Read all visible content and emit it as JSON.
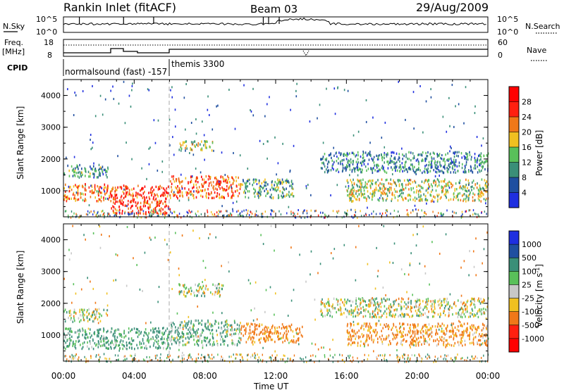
{
  "header": {
    "title": "Rankin Inlet (fitACF)",
    "beam": "Beam 03",
    "date": "29/Aug/2009"
  },
  "nsky_panel": {
    "left_label": "N.Sky",
    "left_ticks": [
      "10^5",
      "10^0"
    ],
    "right_label": "N.Search",
    "right_ticks": [
      "10^5",
      "10^0"
    ]
  },
  "freq_panel": {
    "left_label_line1": "Freq.",
    "left_label_line2": "[MHz]",
    "left_ticks": [
      "18",
      "8"
    ],
    "right_label": "Nave",
    "right_ticks": [
      "60",
      "0"
    ]
  },
  "cpid": {
    "label": "CPID",
    "segments": [
      {
        "name": "normalsound (fast) -157",
        "start_hour": 0
      },
      {
        "name": "themis 3300",
        "start_hour": 6
      }
    ]
  },
  "time_axis": {
    "label": "Time UT",
    "ticks": [
      "00:00",
      "04:00",
      "08:00",
      "12:00",
      "16:00",
      "20:00",
      "00:00"
    ]
  },
  "chart_data": [
    {
      "type": "heatmap",
      "title": "",
      "quantity": "Power",
      "xlabel": "Time UT",
      "ylabel": "Slant Range [km]",
      "xlim_hours": [
        0,
        24
      ],
      "ylim_km": [
        180,
        4500
      ],
      "y_ticks": [
        "1000",
        "2000",
        "3000",
        "4000"
      ],
      "colorbar_label": "Power [dB]",
      "colorbar_ticks": [
        "4",
        "8",
        "12",
        "16",
        "20",
        "24",
        "28"
      ],
      "colorbar_colors": [
        "#1f2fe0",
        "#1f4fa0",
        "#3a8f78",
        "#59c05a",
        "#f0c020",
        "#f07818",
        "#ff2010",
        "#ff0000"
      ],
      "scatter_blobs": [
        {
          "t0": 0.0,
          "t1": 2.5,
          "r0": 1450,
          "r1": 1850,
          "value": 10
        },
        {
          "t0": 0.0,
          "t1": 2.5,
          "r0": 700,
          "r1": 1250,
          "value": 22
        },
        {
          "t0": 2.5,
          "t1": 6.0,
          "r0": 300,
          "r1": 1200,
          "value": 26
        },
        {
          "t0": 6.0,
          "t1": 10.0,
          "r0": 800,
          "r1": 1500,
          "value": 24
        },
        {
          "t0": 6.5,
          "t1": 8.5,
          "r0": 2300,
          "r1": 2600,
          "value": 14
        },
        {
          "t0": 10.0,
          "t1": 13.0,
          "r0": 800,
          "r1": 1400,
          "value": 12
        },
        {
          "t0": 14.5,
          "t1": 24.0,
          "r0": 1600,
          "r1": 2250,
          "value": 9
        },
        {
          "t0": 16.0,
          "t1": 24.0,
          "r0": 700,
          "r1": 1400,
          "value": 16
        }
      ]
    },
    {
      "type": "heatmap",
      "title": "",
      "quantity": "Velocity",
      "xlabel": "Time UT",
      "ylabel": "Slant Range [km]",
      "xlim_hours": [
        0,
        24
      ],
      "ylim_km": [
        180,
        4500
      ],
      "y_ticks": [
        "1000",
        "2000",
        "3000",
        "4000"
      ],
      "colorbar_label": "Velocity [m s^-1]",
      "colorbar_ticks": [
        "1000",
        "500",
        "100",
        "25",
        "-25",
        "-100",
        "-500",
        "-1000"
      ],
      "colorbar_colors": [
        "#1f2fe0",
        "#1f4fa0",
        "#3a8f78",
        "#59c05a",
        "#c8c8c8",
        "#f0c020",
        "#f07818",
        "#ff2010",
        "#ff0000"
      ],
      "scatter_blobs": [
        {
          "t0": 0.0,
          "t1": 2.5,
          "r0": 1450,
          "r1": 1850,
          "value": 0
        },
        {
          "t0": 0.0,
          "t1": 6.0,
          "r0": 600,
          "r1": 1250,
          "value": 150
        },
        {
          "t0": 6.0,
          "t1": 10.0,
          "r0": 700,
          "r1": 1500,
          "value": 100
        },
        {
          "t0": 6.5,
          "t1": 9.0,
          "r0": 2250,
          "r1": 2650,
          "value": 0
        },
        {
          "t0": 10.0,
          "t1": 13.5,
          "r0": 800,
          "r1": 1400,
          "value": -200
        },
        {
          "t0": 14.5,
          "t1": 24.0,
          "r0": 1600,
          "r1": 2200,
          "value": 0
        },
        {
          "t0": 16.0,
          "t1": 24.0,
          "r0": 700,
          "r1": 1400,
          "value": -150
        }
      ]
    }
  ]
}
